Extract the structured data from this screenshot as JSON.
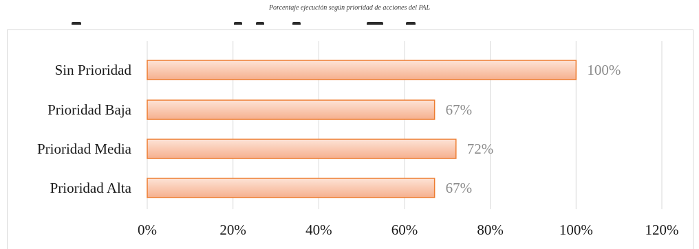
{
  "caption": "Porcentaje ejecución según prioridad de acciones del PAL",
  "colors": {
    "bar_fill_light": "#fde3d6",
    "bar_fill_dark": "#f6b08e",
    "bar_stroke": "#ed7d31",
    "gridline": "#d9d9d9",
    "data_label": "#8c8c8c"
  },
  "chart_data": {
    "type": "bar",
    "orientation": "horizontal",
    "categories": [
      "Sin Prioridad",
      "Prioridad Baja",
      "Prioridad Media",
      "Prioridad Alta"
    ],
    "values": [
      100,
      67,
      72,
      67
    ],
    "data_labels": [
      "100%",
      "67%",
      "72%",
      "67%"
    ],
    "xlim": [
      0,
      120
    ],
    "x_ticks": [
      0,
      20,
      40,
      60,
      80,
      100,
      120
    ],
    "x_tick_labels": [
      "0%",
      "20%",
      "40%",
      "60%",
      "80%",
      "100%",
      "120%"
    ],
    "grid": true,
    "legend": "none"
  }
}
